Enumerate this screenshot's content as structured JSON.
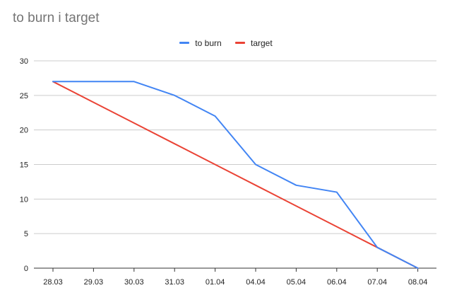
{
  "chart_data": {
    "type": "line",
    "title": "to burn i target",
    "categories": [
      "28.03",
      "29.03",
      "30.03",
      "31.03",
      "01.04",
      "04.04",
      "05.04",
      "06.04",
      "07.04",
      "08.04"
    ],
    "series": [
      {
        "name": "to burn",
        "color": "#4285f4",
        "values": [
          27,
          27,
          27,
          25,
          22,
          15,
          12,
          11,
          3,
          0
        ]
      },
      {
        "name": "target",
        "color": "#ea4335",
        "values": [
          27,
          24,
          21,
          18,
          15,
          12,
          9,
          6,
          3,
          0
        ]
      }
    ],
    "ylim": [
      0,
      30
    ],
    "yticks": [
      0,
      5,
      10,
      15,
      20,
      25,
      30
    ],
    "xlabel": "",
    "ylabel": "",
    "grid": true,
    "legend_position": "top"
  }
}
